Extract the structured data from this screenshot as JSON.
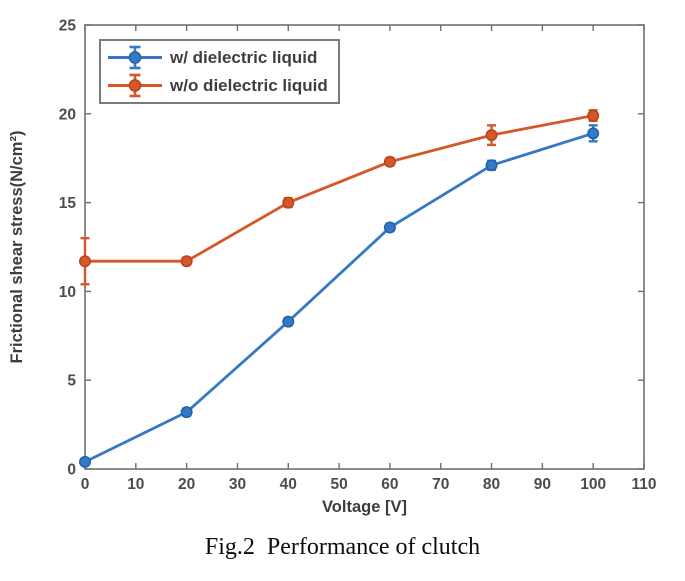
{
  "figure": {
    "caption": "Fig.2  Performance of clutch"
  },
  "chart_data": {
    "type": "line",
    "title": "",
    "xlabel": "Voltage [V]",
    "ylabel": "Frictional shear stress(N/cm²)",
    "xlim": [
      0,
      110
    ],
    "ylim": [
      0,
      25
    ],
    "xticks": [
      0,
      10,
      20,
      30,
      40,
      50,
      60,
      70,
      80,
      90,
      100,
      110
    ],
    "yticks": [
      0,
      5,
      10,
      15,
      20,
      25
    ],
    "grid": false,
    "legend_position": "top-left",
    "marker": "circle-with-errorbar",
    "x": [
      0,
      20,
      40,
      60,
      80,
      100
    ],
    "series": [
      {
        "name": "w/ dielectric liquid",
        "color": "#3579c4",
        "edge_color": "#2264ab",
        "values": [
          0.4,
          3.2,
          8.3,
          13.6,
          17.1,
          18.9
        ],
        "errors": [
          0.15,
          0.2,
          0.2,
          0.2,
          0.25,
          0.45
        ]
      },
      {
        "name": "w/o dielectric liquid",
        "color": "#d4582a",
        "edge_color": "#bc4517",
        "values": [
          11.7,
          11.7,
          15.0,
          17.3,
          18.8,
          19.9
        ],
        "errors": [
          1.3,
          0.2,
          0.25,
          0.2,
          0.55,
          0.3
        ]
      }
    ]
  },
  "colors": {
    "axis": "#6f6f6f",
    "tick_label": "#4c4c4c",
    "axis_label": "#3d3d3d"
  }
}
